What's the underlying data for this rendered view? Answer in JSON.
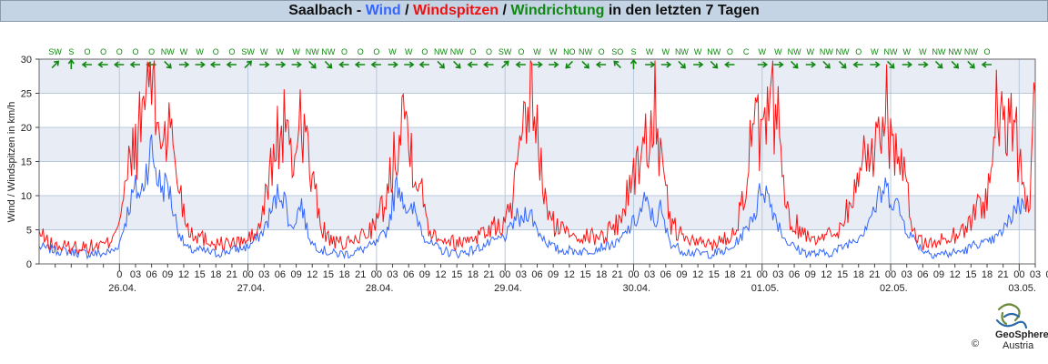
{
  "title": {
    "location": "Saalbach",
    "sep1": " - ",
    "wind": "Wind",
    "sep2": " / ",
    "gusts": "Windspitzen",
    "sep3": " / ",
    "direction": "Windrichtung",
    "suffix": " in den letzten 7 Tagen"
  },
  "colors": {
    "wind": "#3366ff",
    "gusts": "#ff1111",
    "direction": "#118811",
    "band": "#e8ecf4",
    "grid": "#b8c8dc"
  },
  "logo": {
    "name": "GeoSphere",
    "sub": "Austria",
    "copyright": "©"
  },
  "chart_data": {
    "type": "line",
    "ylabel": "Wind / Windspitzen in km/h",
    "ylim": [
      0,
      30
    ],
    "yticks": [
      0,
      5,
      10,
      15,
      20,
      25,
      30
    ],
    "xlim_hours": [
      -15,
      171
    ],
    "hour_tick_labels": [
      "03",
      "06",
      "09",
      "12",
      "15",
      "18",
      "21",
      "00",
      "03",
      "06",
      "09",
      "12",
      "15",
      "18",
      "21",
      "00",
      "03",
      "06",
      "09",
      "12",
      "15",
      "18",
      "21",
      "00",
      "03",
      "06",
      "09",
      "12",
      "15",
      "18",
      "21",
      "00",
      "03",
      "06",
      "09",
      "12",
      "15",
      "18",
      "21",
      "00",
      "03",
      "06",
      "09",
      "12",
      "15",
      "18",
      "21",
      "00",
      "03",
      "06",
      "09",
      "12",
      "15",
      "18",
      "21",
      "00",
      "03",
      "06",
      "09",
      "12",
      "15",
      "18",
      "21",
      "00",
      "03",
      "06",
      "09",
      "12"
    ],
    "first_label_prefix": "0",
    "dates": [
      "26.04.",
      "27.04.",
      "28.04.",
      "29.04.",
      "30.04.",
      "01.05.",
      "02.05.",
      "03.05."
    ],
    "directions": [
      "SW",
      "S",
      "O",
      "O",
      "O",
      "O",
      "O",
      "NW",
      "W",
      "W",
      "O",
      "O",
      "SW",
      "W",
      "W",
      "W",
      "NW",
      "NW",
      "O",
      "O",
      "O",
      "W",
      "W",
      "O",
      "NW",
      "NW",
      "O",
      "O",
      "SW",
      "O",
      "W",
      "W",
      "NO",
      "NW",
      "O",
      "SO",
      "S",
      "W",
      "W",
      "NW",
      "W",
      "NW",
      "O",
      "C",
      "W",
      "W",
      "NW",
      "W",
      "NW",
      "NW",
      "O",
      "W",
      "NW",
      "W",
      "W",
      "NW",
      "NW",
      "NW",
      "O"
    ],
    "wind_keypoints": [
      [
        -15,
        2.5
      ],
      [
        -12,
        2
      ],
      [
        -9,
        1.8
      ],
      [
        -6,
        1.5
      ],
      [
        -3,
        1.5
      ],
      [
        -1,
        2
      ],
      [
        0,
        3
      ],
      [
        1,
        6
      ],
      [
        2,
        9
      ],
      [
        3,
        11
      ],
      [
        4,
        10
      ],
      [
        5,
        14
      ],
      [
        6,
        17
      ],
      [
        7,
        13
      ],
      [
        8,
        11
      ],
      [
        9,
        12
      ],
      [
        10,
        8
      ],
      [
        11,
        5
      ],
      [
        12,
        3
      ],
      [
        13,
        2
      ],
      [
        15,
        2
      ],
      [
        18,
        1.5
      ],
      [
        21,
        2
      ],
      [
        24,
        2.5
      ],
      [
        26,
        4
      ],
      [
        27,
        5
      ],
      [
        28,
        7
      ],
      [
        29,
        9
      ],
      [
        30,
        11
      ],
      [
        31,
        9
      ],
      [
        32,
        5
      ],
      [
        33,
        7
      ],
      [
        34,
        9
      ],
      [
        35,
        5
      ],
      [
        36,
        3
      ],
      [
        38,
        2
      ],
      [
        40,
        1.5
      ],
      [
        43,
        1.5
      ],
      [
        45,
        2
      ],
      [
        48,
        3
      ],
      [
        50,
        5
      ],
      [
        51,
        9
      ],
      [
        52,
        12
      ],
      [
        53,
        10
      ],
      [
        54,
        7
      ],
      [
        55,
        8
      ],
      [
        56,
        6
      ],
      [
        57,
        4
      ],
      [
        58,
        3
      ],
      [
        60,
        2
      ],
      [
        63,
        1.5
      ],
      [
        66,
        2
      ],
      [
        69,
        3
      ],
      [
        72,
        4
      ],
      [
        73,
        5
      ],
      [
        74,
        7
      ],
      [
        75,
        6
      ],
      [
        76,
        8
      ],
      [
        77,
        7
      ],
      [
        78,
        5
      ],
      [
        79,
        4
      ],
      [
        80,
        3
      ],
      [
        82,
        2
      ],
      [
        84,
        2
      ],
      [
        87,
        1.8
      ],
      [
        90,
        2.5
      ],
      [
        93,
        3
      ],
      [
        95,
        5
      ],
      [
        96,
        6
      ],
      [
        97,
        7
      ],
      [
        98,
        9
      ],
      [
        99,
        8
      ],
      [
        100,
        6
      ],
      [
        101,
        8
      ],
      [
        102,
        5
      ],
      [
        103,
        3
      ],
      [
        105,
        2
      ],
      [
        108,
        1.5
      ],
      [
        111,
        1.5
      ],
      [
        114,
        2
      ],
      [
        116,
        4
      ],
      [
        117,
        5
      ],
      [
        118,
        7
      ],
      [
        119,
        8
      ],
      [
        120,
        12
      ],
      [
        121,
        10
      ],
      [
        122,
        8
      ],
      [
        123,
        6
      ],
      [
        124,
        4
      ],
      [
        125,
        3
      ],
      [
        127,
        2
      ],
      [
        129,
        1.5
      ],
      [
        132,
        1.5
      ],
      [
        134,
        2
      ],
      [
        136,
        3
      ],
      [
        138,
        4
      ],
      [
        139,
        5
      ],
      [
        140,
        7
      ],
      [
        141,
        8
      ],
      [
        142,
        10
      ],
      [
        143,
        11
      ],
      [
        144,
        10
      ],
      [
        145,
        9
      ],
      [
        146,
        7
      ],
      [
        147,
        5
      ],
      [
        148,
        4
      ],
      [
        149,
        3
      ],
      [
        150,
        2
      ],
      [
        152,
        1.5
      ],
      [
        155,
        1.5
      ],
      [
        158,
        2
      ],
      [
        160,
        3
      ],
      [
        162,
        3
      ],
      [
        164,
        4
      ],
      [
        166,
        6
      ],
      [
        167,
        8
      ],
      [
        168,
        9
      ],
      [
        169,
        8
      ]
    ],
    "gust_keypoints": [
      [
        -15,
        4.5
      ],
      [
        -13,
        3
      ],
      [
        -11,
        2.5
      ],
      [
        -8,
        2.5
      ],
      [
        -5,
        2.5
      ],
      [
        -2,
        3
      ],
      [
        -1,
        5
      ],
      [
        0,
        7
      ],
      [
        1,
        10
      ],
      [
        2,
        15
      ],
      [
        3,
        17
      ],
      [
        4,
        20
      ],
      [
        5,
        26
      ],
      [
        6,
        28
      ],
      [
        7,
        21
      ],
      [
        8,
        19
      ],
      [
        9,
        20
      ],
      [
        10,
        18
      ],
      [
        11,
        12
      ],
      [
        12,
        8
      ],
      [
        13,
        5
      ],
      [
        15,
        4
      ],
      [
        18,
        3
      ],
      [
        21,
        3
      ],
      [
        24,
        3.5
      ],
      [
        26,
        5
      ],
      [
        27,
        8
      ],
      [
        28,
        13
      ],
      [
        29,
        17
      ],
      [
        30,
        19
      ],
      [
        31,
        21
      ],
      [
        32,
        14
      ],
      [
        33,
        18
      ],
      [
        34,
        23
      ],
      [
        35,
        17
      ],
      [
        36,
        12
      ],
      [
        37,
        8
      ],
      [
        38,
        5
      ],
      [
        40,
        3
      ],
      [
        43,
        3
      ],
      [
        45,
        4
      ],
      [
        48,
        6
      ],
      [
        50,
        10
      ],
      [
        51,
        15
      ],
      [
        52,
        20
      ],
      [
        53,
        24
      ],
      [
        54,
        18
      ],
      [
        55,
        16
      ],
      [
        56,
        12
      ],
      [
        57,
        8
      ],
      [
        58,
        5
      ],
      [
        60,
        4
      ],
      [
        63,
        3
      ],
      [
        66,
        4
      ],
      [
        69,
        5
      ],
      [
        72,
        6
      ],
      [
        73,
        8
      ],
      [
        74,
        12
      ],
      [
        75,
        16
      ],
      [
        76,
        20
      ],
      [
        77,
        28
      ],
      [
        78,
        18
      ],
      [
        79,
        12
      ],
      [
        80,
        7
      ],
      [
        82,
        5
      ],
      [
        84,
        5
      ],
      [
        87,
        4
      ],
      [
        90,
        4
      ],
      [
        93,
        6
      ],
      [
        95,
        10
      ],
      [
        96,
        14
      ],
      [
        97,
        15
      ],
      [
        98,
        17
      ],
      [
        99,
        19
      ],
      [
        100,
        26
      ],
      [
        101,
        14
      ],
      [
        102,
        10
      ],
      [
        103,
        6
      ],
      [
        105,
        4
      ],
      [
        108,
        3
      ],
      [
        111,
        3
      ],
      [
        114,
        4
      ],
      [
        116,
        8
      ],
      [
        117,
        12
      ],
      [
        118,
        18
      ],
      [
        119,
        20
      ],
      [
        120,
        17
      ],
      [
        121,
        20
      ],
      [
        122,
        23
      ],
      [
        123,
        22
      ],
      [
        124,
        10
      ],
      [
        125,
        7
      ],
      [
        127,
        5
      ],
      [
        129,
        4
      ],
      [
        132,
        4
      ],
      [
        134,
        5
      ],
      [
        136,
        8
      ],
      [
        138,
        12
      ],
      [
        139,
        16
      ],
      [
        140,
        17
      ],
      [
        141,
        16
      ],
      [
        142,
        20
      ],
      [
        143,
        27
      ],
      [
        144,
        18
      ],
      [
        145,
        17
      ],
      [
        146,
        14
      ],
      [
        147,
        10
      ],
      [
        148,
        6
      ],
      [
        149,
        4
      ],
      [
        150,
        3
      ],
      [
        152,
        3
      ],
      [
        155,
        4
      ],
      [
        158,
        5
      ],
      [
        160,
        8
      ],
      [
        162,
        10
      ],
      [
        163,
        14
      ],
      [
        164,
        24
      ],
      [
        165,
        18
      ],
      [
        166,
        22
      ],
      [
        167,
        19
      ],
      [
        168,
        16
      ],
      [
        169,
        11
      ],
      [
        170,
        8
      ],
      [
        171,
        25
      ]
    ]
  }
}
